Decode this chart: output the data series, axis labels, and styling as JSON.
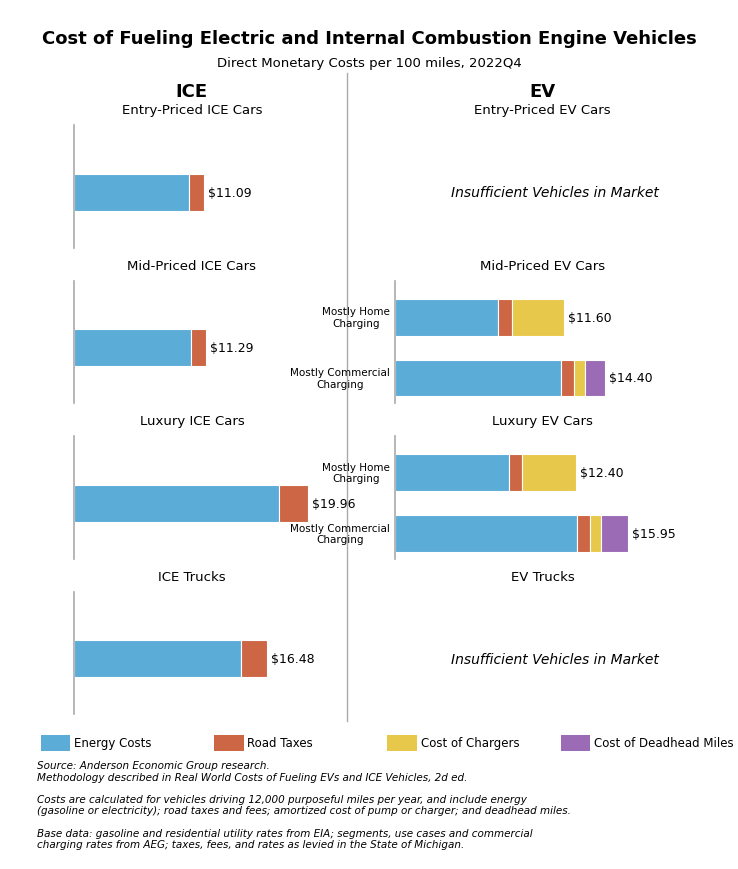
{
  "title": "Cost of Fueling Electric and Internal Combustion Engine Vehicles",
  "subtitle": "Direct Monetary Costs per 100 miles, 2022Q4",
  "colors": {
    "energy": "#5BACD6",
    "road_taxes": "#CC6644",
    "charger": "#E8C84A",
    "deadhead": "#9B6BB5"
  },
  "sections": [
    {
      "ice_title": "Entry-Priced ICE Cars",
      "ev_title": "Entry-Priced EV Cars",
      "ice_bars": [
        {
          "label": "",
          "segments": [
            {
              "type": "energy",
              "val": 9.8
            },
            {
              "type": "road_taxes",
              "val": 1.29
            }
          ],
          "total": "$11.09"
        }
      ],
      "ev_bars": null,
      "ev_insufficient": true
    },
    {
      "ice_title": "Mid-Priced ICE Cars",
      "ev_title": "Mid-Priced EV Cars",
      "ice_bars": [
        {
          "label": "",
          "segments": [
            {
              "type": "energy",
              "val": 9.95
            },
            {
              "type": "road_taxes",
              "val": 1.34
            }
          ],
          "total": "$11.29"
        }
      ],
      "ev_bars": [
        {
          "label": "Mostly Home\nCharging",
          "segments": [
            {
              "type": "energy",
              "val": 7.1
            },
            {
              "type": "road_taxes",
              "val": 0.9
            },
            {
              "type": "charger",
              "val": 3.6
            }
          ],
          "total": "$11.60"
        },
        {
          "label": "Mostly Commercial\nCharging",
          "segments": [
            {
              "type": "energy",
              "val": 11.4
            },
            {
              "type": "road_taxes",
              "val": 0.9
            },
            {
              "type": "charger",
              "val": 0.7
            },
            {
              "type": "deadhead",
              "val": 1.4
            }
          ],
          "total": "$14.40"
        }
      ],
      "ev_insufficient": false
    },
    {
      "ice_title": "Luxury ICE Cars",
      "ev_title": "Luxury EV Cars",
      "ice_bars": [
        {
          "label": "",
          "segments": [
            {
              "type": "energy",
              "val": 17.5
            },
            {
              "type": "road_taxes",
              "val": 2.46
            }
          ],
          "total": "$19.96"
        }
      ],
      "ev_bars": [
        {
          "label": "Mostly Home\nCharging",
          "segments": [
            {
              "type": "energy",
              "val": 7.8
            },
            {
              "type": "road_taxes",
              "val": 0.9
            },
            {
              "type": "charger",
              "val": 3.7
            }
          ],
          "total": "$12.40"
        },
        {
          "label": "Mostly Commercial\nCharging",
          "segments": [
            {
              "type": "energy",
              "val": 12.5
            },
            {
              "type": "road_taxes",
              "val": 0.9
            },
            {
              "type": "charger",
              "val": 0.7
            },
            {
              "type": "deadhead",
              "val": 1.85
            }
          ],
          "total": "$15.95"
        }
      ],
      "ev_insufficient": false
    },
    {
      "ice_title": "ICE Trucks",
      "ev_title": "EV Trucks",
      "ice_bars": [
        {
          "label": "",
          "segments": [
            {
              "type": "energy",
              "val": 14.2
            },
            {
              "type": "road_taxes",
              "val": 2.28
            }
          ],
          "total": "$16.48"
        }
      ],
      "ev_bars": null,
      "ev_insufficient": true
    }
  ],
  "legend_items": [
    {
      "label": "Energy Costs",
      "color": "#5BACD6"
    },
    {
      "label": "Road Taxes",
      "color": "#CC6644"
    },
    {
      "label": "Cost of Chargers",
      "color": "#E8C84A"
    },
    {
      "label": "Cost of Deadhead Miles",
      "color": "#9B6BB5"
    }
  ],
  "footer_lines": [
    "Source: Anderson Economic Group research.",
    "Methodology described in Real World Costs of Fueling EVs and ICE Vehicles, 2d ed.",
    "",
    "Costs are calculated for vehicles driving 12,000 purposeful miles per year, and include energy",
    "(gasoline or electricity); road taxes and fees; amortized cost of pump or charger; and deadhead miles.",
    "",
    "Base data: gasoline and residential utility rates from EIA; segments, use cases and commercial",
    "charging rates from AEG; taxes, fees, and rates as levied in the State of Michigan."
  ],
  "ice_col_header": "ICE",
  "ev_col_header": "EV",
  "insufficient_text": "Insufficient Vehicles in Market",
  "xmax": 22
}
